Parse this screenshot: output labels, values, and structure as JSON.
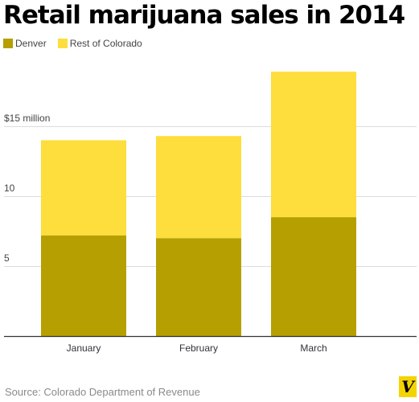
{
  "chart_data": {
    "type": "bar",
    "stacked": true,
    "title": "Retail marijuana sales in 2014",
    "categories": [
      "January",
      "February",
      "March"
    ],
    "series": [
      {
        "name": "Denver",
        "color": "#b69f00",
        "values": [
          7.2,
          7.0,
          8.5
        ]
      },
      {
        "name": "Rest of Colorado",
        "color": "#fdde3d",
        "values": [
          6.8,
          7.3,
          10.4
        ]
      }
    ],
    "yticks": [
      {
        "value": 5,
        "label": "5"
      },
      {
        "value": 10,
        "label": "10"
      },
      {
        "value": 15,
        "label": "$15 million"
      }
    ],
    "ylim": [
      0,
      20
    ],
    "grid": true,
    "legend_position": "top-left",
    "source": "Source: Colorado Department of Revenue",
    "logo_text": "V"
  }
}
